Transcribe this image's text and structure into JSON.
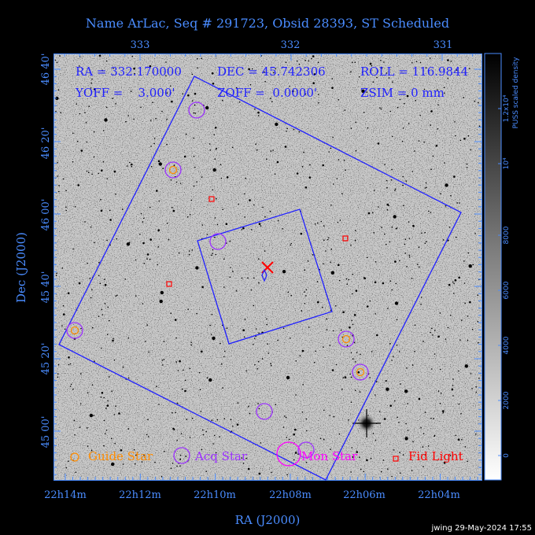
{
  "title": "Name ArLac, Seq # 291723, Obsid 28393, ST Scheduled",
  "readout": {
    "ra": "RA = 332.170000",
    "dec": "DEC = 45.742306",
    "roll": "ROLL = 116.9844",
    "yoff": "YOFF =    3.000'",
    "zoff": "ZOFF =  0.0000'",
    "zsim": "ZSIM = 0 mm"
  },
  "top_axis_labels": [
    "333",
    "332",
    "331"
  ],
  "bottom_axis_labels": [
    "22h14m",
    "22h12m",
    "22h10m",
    "22h08m",
    "22h06m",
    "22h04m"
  ],
  "left_axis_labels": [
    "46 40'",
    "46 20'",
    "46 00'",
    "45 40'",
    "45 20'",
    "45 00'"
  ],
  "xlabel": "RA (J2000)",
  "ylabel": "Dec (J2000)",
  "colorbar": {
    "title": "PUSS scaled density",
    "ticks": [
      "0",
      "2000",
      "4000",
      "6000",
      "8000",
      "10⁴",
      "1.2x10⁴"
    ]
  },
  "legend": {
    "guide": "Guide Star",
    "acq": "Acq Star",
    "mon": "Mon Star",
    "fid": "Fid Light"
  },
  "footer": "jwing 29-May-2024 17:55",
  "colors": {
    "axis_text": "#4a8cff",
    "frame_blue": "#2020ff",
    "guide": "#ff8c00",
    "acq": "#9b30ff",
    "mon": "#ff00ff",
    "fid": "#ff0000",
    "target": "#ff0000"
  },
  "icons": {
    "guide": "orange-circle-icon",
    "acq": "purple-circle-icon",
    "mon": "magenta-circle-icon",
    "fid": "red-square-icon",
    "target": "red-x-icon"
  }
}
